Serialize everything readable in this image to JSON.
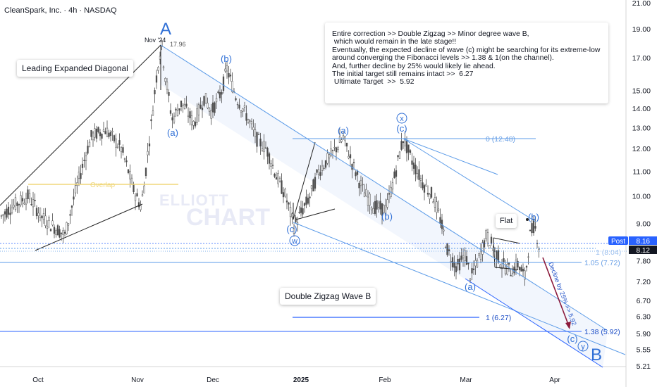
{
  "header": {
    "title": "CleanSpark, Inc. · 4h · NASDAQ"
  },
  "note": {
    "lines": [
      "Entire correction >> Double Zigzag >> Minor degree wave B,",
      " which would remain in the late stage!!",
      "",
      "Eventually, the expected decline of wave (c) might be searching for its extreme-low",
      "around converging the Fibonacci levels >> 1.38 & 1(on the channel).",
      "And, further decline by 25% would likely lie ahead.",
      "",
      "The initial target still remains intact >>  6.27",
      " Ultimate Target  >>  5.92"
    ]
  },
  "labels": {
    "leading": "Leading Expanded Diagonal",
    "dzz": "Double Zigzag Wave B",
    "flat": "Flat",
    "overlap": "Overlap",
    "watermark1": "ELLIOTT",
    "watermark2": "CHART",
    "decline": "Decline by 25% >> 5.92",
    "high_date": "Nov '24",
    "high_value": "17.96"
  },
  "waves": {
    "A": "A",
    "B": "B",
    "a1": "(a)",
    "b1": "(b)",
    "c1": "(c)",
    "w": "w",
    "a2": "(a)",
    "b2": "(b)",
    "c2": "(c)",
    "x": "x",
    "a3": "(a)",
    "b3": "(b)",
    "c3": "(c)",
    "y": "y"
  },
  "fib": {
    "f0": "0 (12.48)",
    "f1": "1 (8.04)",
    "f105": "1.05 (7.72)",
    "f1t": "1 (6.27)",
    "f138": "1.38 (5.92)"
  },
  "price_axis": {
    "ticks": [
      21.0,
      19.0,
      17.0,
      15.0,
      14.0,
      13.0,
      12.0,
      11.0,
      10.0,
      9.0,
      7.8,
      7.2,
      6.7,
      6.3,
      5.9,
      5.55,
      5.21
    ],
    "tick_labels": [
      "21.00",
      "19.00",
      "17.00",
      "15.00",
      "14.00",
      "13.00",
      "12.00",
      "11.00",
      "10.00",
      "9.00",
      "7.80",
      "7.20",
      "6.70",
      "6.30",
      "5.90",
      "5.55",
      "5.21"
    ],
    "post_label": "Post",
    "post_value": "8.16",
    "last_value": "8.12"
  },
  "time_axis": {
    "labels": [
      "Oct",
      "Nov",
      "Dec",
      "2025",
      "Feb",
      "Mar",
      "Apr"
    ]
  },
  "colors": {
    "accent": "#2962ff",
    "wave": "#2f6fd6",
    "fib_line": "#5b9be8",
    "channel_fill": "#e8eefb",
    "overlap": "#f0d77a",
    "arrow": "#8b1a3c"
  },
  "chart_data": {
    "type": "candlestick",
    "title": "CleanSpark, Inc. · 4h · NASDAQ",
    "ylim": [
      5.0,
      22.0
    ],
    "y_scale": "log",
    "x_labels": [
      "Oct",
      "Nov",
      "Dec",
      "2025",
      "Feb",
      "Mar",
      "Apr"
    ],
    "key_points": [
      {
        "label": "A",
        "value": 17.96,
        "time": "Nov '24"
      },
      {
        "label": "(a)",
        "value": 13.2
      },
      {
        "label": "(b)",
        "value": 16.3
      },
      {
        "label": "(c) w",
        "value": 8.9
      },
      {
        "label": "(a)",
        "value": 12.5
      },
      {
        "label": "(b)",
        "value": 9.5
      },
      {
        "label": "(c) x",
        "value": 12.48
      },
      {
        "label": "(a)",
        "value": 7.2
      },
      {
        "label": "(b)",
        "value": 9.1
      },
      {
        "label": "(c) y",
        "value": 5.92
      }
    ],
    "fib_levels": [
      {
        "name": "0",
        "value": 12.48
      },
      {
        "name": "1",
        "value": 8.04
      },
      {
        "name": "1.05",
        "value": 7.72
      },
      {
        "name": "1",
        "value": 6.27
      },
      {
        "name": "1.38",
        "value": 5.92
      }
    ],
    "last_price": 8.12,
    "post_price": 8.16,
    "grid": false
  }
}
